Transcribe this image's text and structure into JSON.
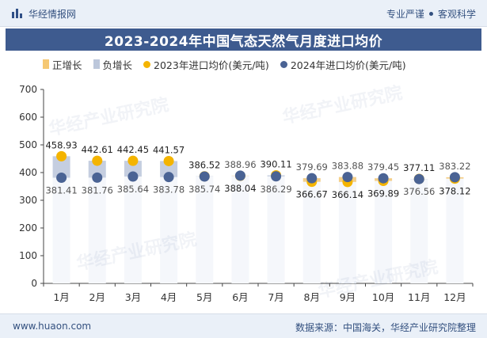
{
  "header": {
    "brand": "华经情报网",
    "slogan_left": "专业严谨",
    "slogan_right": "客观科学"
  },
  "colors": {
    "accent": "#3e5b8f",
    "positive_bar": "#f5c873",
    "negative_bar": "#bcc7db",
    "dot_2023": "#f4b400",
    "dot_2024": "#4a6394"
  },
  "watermark_text": "华经产业研究院",
  "footer": {
    "url": "www.huaon.com",
    "source": "数据来源：中国海关，华经产业研究院整理"
  },
  "chart_data": {
    "type": "bar",
    "title": "2023-2024年中国气态天然气月度进口均价",
    "categories": [
      "1月",
      "2月",
      "3月",
      "4月",
      "5月",
      "6月",
      "7月",
      "8月",
      "9月",
      "10月",
      "11月",
      "12月"
    ],
    "legend": [
      "正增长",
      "负增长",
      "2023年进口均价(美元/吨)",
      "2024年进口均价(美元/吨)"
    ],
    "series": [
      {
        "name": "2023年进口均价(美元/吨)",
        "values": [
          458.93,
          442.61,
          442.45,
          441.57,
          386.52,
          388.04,
          390.11,
          366.67,
          366.14,
          369.89,
          377.11,
          378.12
        ]
      },
      {
        "name": "2024年进口均价(美元/吨)",
        "values": [
          381.41,
          381.76,
          385.64,
          383.78,
          385.74,
          388.96,
          386.29,
          379.69,
          383.88,
          379.45,
          376.56,
          383.22
        ]
      }
    ],
    "ylim": [
      0,
      700
    ],
    "yticks": [
      0,
      100,
      200,
      300,
      400,
      500,
      600,
      700
    ],
    "xlabel": "",
    "ylabel": "",
    "grid": false,
    "legend_position": "top-left"
  }
}
